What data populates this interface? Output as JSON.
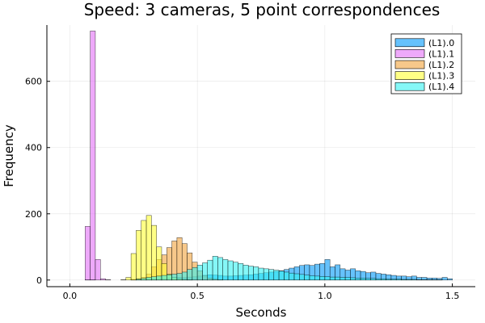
{
  "chart_data": {
    "type": "bar",
    "title": "Speed: 3 cameras, 5 point correspondences",
    "xlabel": "Seconds",
    "ylabel": "Frequency",
    "xlim": [
      -0.09,
      1.59
    ],
    "ylim": [
      -20,
      770
    ],
    "xticks": [
      0.0,
      0.5,
      1.0,
      1.5
    ],
    "xtick_labels": [
      "0.0",
      "0.5",
      "1.0",
      "1.5"
    ],
    "yticks": [
      0,
      200,
      400,
      600
    ],
    "ytick_labels": [
      "0",
      "200",
      "400",
      "600"
    ],
    "grid": true,
    "legend_position": "top-right",
    "bin_width": 0.02,
    "series": [
      {
        "name": "(L1).0",
        "color": "#009AFA",
        "bins": [
          [
            0.0,
            0
          ],
          [
            0.02,
            0
          ],
          [
            0.04,
            0
          ],
          [
            0.06,
            1
          ],
          [
            0.08,
            1
          ],
          [
            0.1,
            0
          ],
          [
            0.12,
            0
          ],
          [
            0.14,
            0
          ],
          [
            0.16,
            0
          ],
          [
            0.18,
            0
          ],
          [
            0.2,
            0
          ],
          [
            0.22,
            0
          ],
          [
            0.24,
            1
          ],
          [
            0.26,
            2
          ],
          [
            0.28,
            2
          ],
          [
            0.3,
            3
          ],
          [
            0.32,
            3
          ],
          [
            0.34,
            4
          ],
          [
            0.36,
            5
          ],
          [
            0.38,
            6
          ],
          [
            0.4,
            7
          ],
          [
            0.42,
            8
          ],
          [
            0.44,
            8
          ],
          [
            0.46,
            9
          ],
          [
            0.48,
            10
          ],
          [
            0.5,
            12
          ],
          [
            0.52,
            14
          ],
          [
            0.54,
            16
          ],
          [
            0.56,
            15
          ],
          [
            0.58,
            14
          ],
          [
            0.6,
            12
          ],
          [
            0.62,
            12
          ],
          [
            0.64,
            13
          ],
          [
            0.66,
            14
          ],
          [
            0.68,
            15
          ],
          [
            0.7,
            16
          ],
          [
            0.72,
            18
          ],
          [
            0.74,
            20
          ],
          [
            0.76,
            22
          ],
          [
            0.78,
            24
          ],
          [
            0.8,
            26
          ],
          [
            0.82,
            28
          ],
          [
            0.84,
            32
          ],
          [
            0.86,
            36
          ],
          [
            0.88,
            40
          ],
          [
            0.9,
            44
          ],
          [
            0.92,
            46
          ],
          [
            0.94,
            44
          ],
          [
            0.96,
            48
          ],
          [
            0.98,
            50
          ],
          [
            1.0,
            62
          ],
          [
            1.02,
            40
          ],
          [
            1.04,
            46
          ],
          [
            1.06,
            34
          ],
          [
            1.08,
            30
          ],
          [
            1.1,
            34
          ],
          [
            1.12,
            28
          ],
          [
            1.14,
            26
          ],
          [
            1.16,
            22
          ],
          [
            1.18,
            24
          ],
          [
            1.2,
            20
          ],
          [
            1.22,
            18
          ],
          [
            1.24,
            16
          ],
          [
            1.26,
            14
          ],
          [
            1.28,
            12
          ],
          [
            1.3,
            12
          ],
          [
            1.32,
            10
          ],
          [
            1.34,
            12
          ],
          [
            1.36,
            8
          ],
          [
            1.38,
            8
          ],
          [
            1.4,
            6
          ],
          [
            1.42,
            6
          ],
          [
            1.44,
            5
          ],
          [
            1.46,
            8
          ],
          [
            1.48,
            4
          ]
        ]
      },
      {
        "name": "(L1).1",
        "color": "#E26FF7",
        "bins": [
          [
            0.06,
            162
          ],
          [
            0.08,
            752
          ],
          [
            0.1,
            62
          ],
          [
            0.12,
            4
          ],
          [
            0.14,
            1
          ]
        ]
      },
      {
        "name": "(L1).2",
        "color": "#F2A33C",
        "bins": [
          [
            0.24,
            2
          ],
          [
            0.26,
            4
          ],
          [
            0.28,
            8
          ],
          [
            0.3,
            18
          ],
          [
            0.32,
            40
          ],
          [
            0.34,
            62
          ],
          [
            0.36,
            76
          ],
          [
            0.38,
            98
          ],
          [
            0.4,
            118
          ],
          [
            0.42,
            128
          ],
          [
            0.44,
            110
          ],
          [
            0.46,
            82
          ],
          [
            0.48,
            54
          ],
          [
            0.5,
            28
          ],
          [
            0.52,
            14
          ],
          [
            0.54,
            6
          ],
          [
            0.56,
            3
          ],
          [
            0.58,
            1
          ]
        ]
      },
      {
        "name": "(L1).3",
        "color": "#FFFF33",
        "bins": [
          [
            0.2,
            1
          ],
          [
            0.22,
            8
          ],
          [
            0.24,
            80
          ],
          [
            0.26,
            150
          ],
          [
            0.28,
            180
          ],
          [
            0.3,
            195
          ],
          [
            0.32,
            165
          ],
          [
            0.34,
            100
          ],
          [
            0.36,
            50
          ],
          [
            0.38,
            18
          ],
          [
            0.4,
            8
          ],
          [
            0.42,
            4
          ],
          [
            0.44,
            2
          ],
          [
            0.46,
            1
          ]
        ]
      },
      {
        "name": "(L1).4",
        "color": "#33F2F2",
        "bins": [
          [
            0.26,
            3
          ],
          [
            0.28,
            5
          ],
          [
            0.3,
            8
          ],
          [
            0.32,
            10
          ],
          [
            0.34,
            12
          ],
          [
            0.36,
            14
          ],
          [
            0.38,
            16
          ],
          [
            0.4,
            18
          ],
          [
            0.42,
            20
          ],
          [
            0.44,
            24
          ],
          [
            0.46,
            32
          ],
          [
            0.48,
            38
          ],
          [
            0.5,
            45
          ],
          [
            0.52,
            52
          ],
          [
            0.54,
            60
          ],
          [
            0.56,
            72
          ],
          [
            0.58,
            68
          ],
          [
            0.6,
            62
          ],
          [
            0.62,
            58
          ],
          [
            0.64,
            54
          ],
          [
            0.66,
            50
          ],
          [
            0.68,
            45
          ],
          [
            0.7,
            42
          ],
          [
            0.72,
            40
          ],
          [
            0.74,
            36
          ],
          [
            0.76,
            34
          ],
          [
            0.78,
            32
          ],
          [
            0.8,
            30
          ],
          [
            0.82,
            27
          ],
          [
            0.84,
            24
          ],
          [
            0.86,
            21
          ],
          [
            0.88,
            19
          ],
          [
            0.9,
            17
          ],
          [
            0.92,
            15
          ],
          [
            0.94,
            13
          ],
          [
            0.96,
            12
          ],
          [
            0.98,
            11
          ],
          [
            1.0,
            10
          ],
          [
            1.02,
            9
          ],
          [
            1.04,
            9
          ],
          [
            1.06,
            8
          ],
          [
            1.08,
            8
          ],
          [
            1.1,
            7
          ],
          [
            1.12,
            6
          ],
          [
            1.14,
            6
          ],
          [
            1.16,
            5
          ],
          [
            1.18,
            5
          ],
          [
            1.2,
            4
          ],
          [
            1.22,
            4
          ],
          [
            1.24,
            3
          ],
          [
            1.26,
            3
          ],
          [
            1.28,
            3
          ],
          [
            1.3,
            2
          ],
          [
            1.32,
            2
          ],
          [
            1.34,
            2
          ],
          [
            1.36,
            1
          ],
          [
            1.38,
            1
          ],
          [
            1.4,
            1
          ],
          [
            1.42,
            1
          ],
          [
            1.44,
            1
          ]
        ]
      }
    ]
  }
}
